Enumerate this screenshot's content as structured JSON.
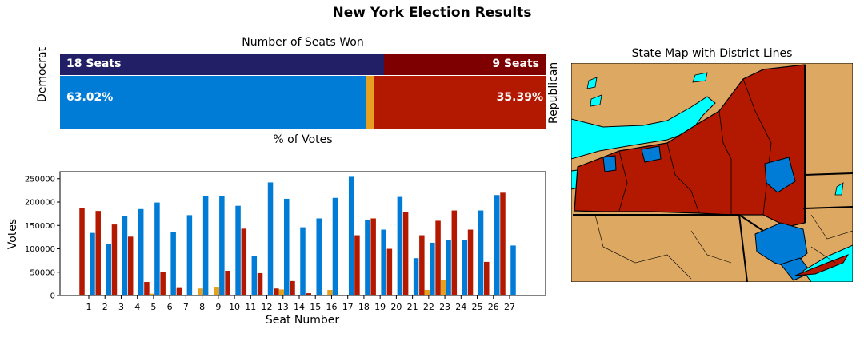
{
  "title": "New York Election Results",
  "seats_panel": {
    "title": "Number of Seats Won",
    "democrat": {
      "seats_label": "18 Seats",
      "seats": 18,
      "pct_label": "63.02%",
      "pct": 63.02,
      "name": "Democrat"
    },
    "republican": {
      "seats_label": "9 Seats",
      "seats": 9,
      "pct_label": "35.39%",
      "pct": 35.39,
      "name": "Republican"
    },
    "other_pct": 1.59,
    "votes_label": "% of Votes"
  },
  "map_panel": {
    "title": "State Map with District Lines"
  },
  "colors": {
    "dem_seats": "#231f66",
    "rep_seats": "#7f0000",
    "dem": "#007bd6",
    "rep": "#b31800",
    "other": "#e5a01f",
    "map_land": "#dca862",
    "map_water": "#00ffff"
  },
  "chart_data": {
    "type": "bar",
    "xlabel": "Seat Number",
    "ylabel": "Votes",
    "ylim": [
      0,
      265000
    ],
    "yticks": [
      0,
      50000,
      100000,
      150000,
      200000,
      250000
    ],
    "categories": [
      "1",
      "2",
      "3",
      "4",
      "5",
      "6",
      "7",
      "8",
      "9",
      "10",
      "11",
      "12",
      "13",
      "14",
      "15",
      "16",
      "17",
      "18",
      "19",
      "20",
      "21",
      "22",
      "23",
      "24",
      "25",
      "26",
      "27"
    ],
    "series": [
      {
        "color": "#b31800",
        "values": [
          187000,
          181000,
          152000,
          126000,
          29000,
          50000,
          16000,
          0,
          0,
          53000,
          143000,
          48000,
          15000,
          31000,
          5000,
          0,
          0,
          129000,
          165000,
          100000,
          178000,
          129000,
          160000,
          182000,
          141000,
          72000,
          220000
        ]
      },
      {
        "color": "#e5a01f",
        "values": [
          0,
          0,
          0,
          0,
          4000,
          0,
          0,
          15000,
          17000,
          0,
          0,
          0,
          13000,
          0,
          0,
          12000,
          0,
          0,
          0,
          0,
          0,
          12000,
          33000,
          0,
          0,
          0,
          0
        ]
      },
      {
        "color": "#007bd6",
        "values": [
          134000,
          110000,
          170000,
          185000,
          199000,
          136000,
          172000,
          213000,
          213000,
          192000,
          84000,
          242000,
          207000,
          146000,
          165000,
          209000,
          254000,
          162000,
          141000,
          211000,
          80000,
          113000,
          118000,
          118000,
          182000,
          215000,
          107000
        ]
      }
    ]
  }
}
